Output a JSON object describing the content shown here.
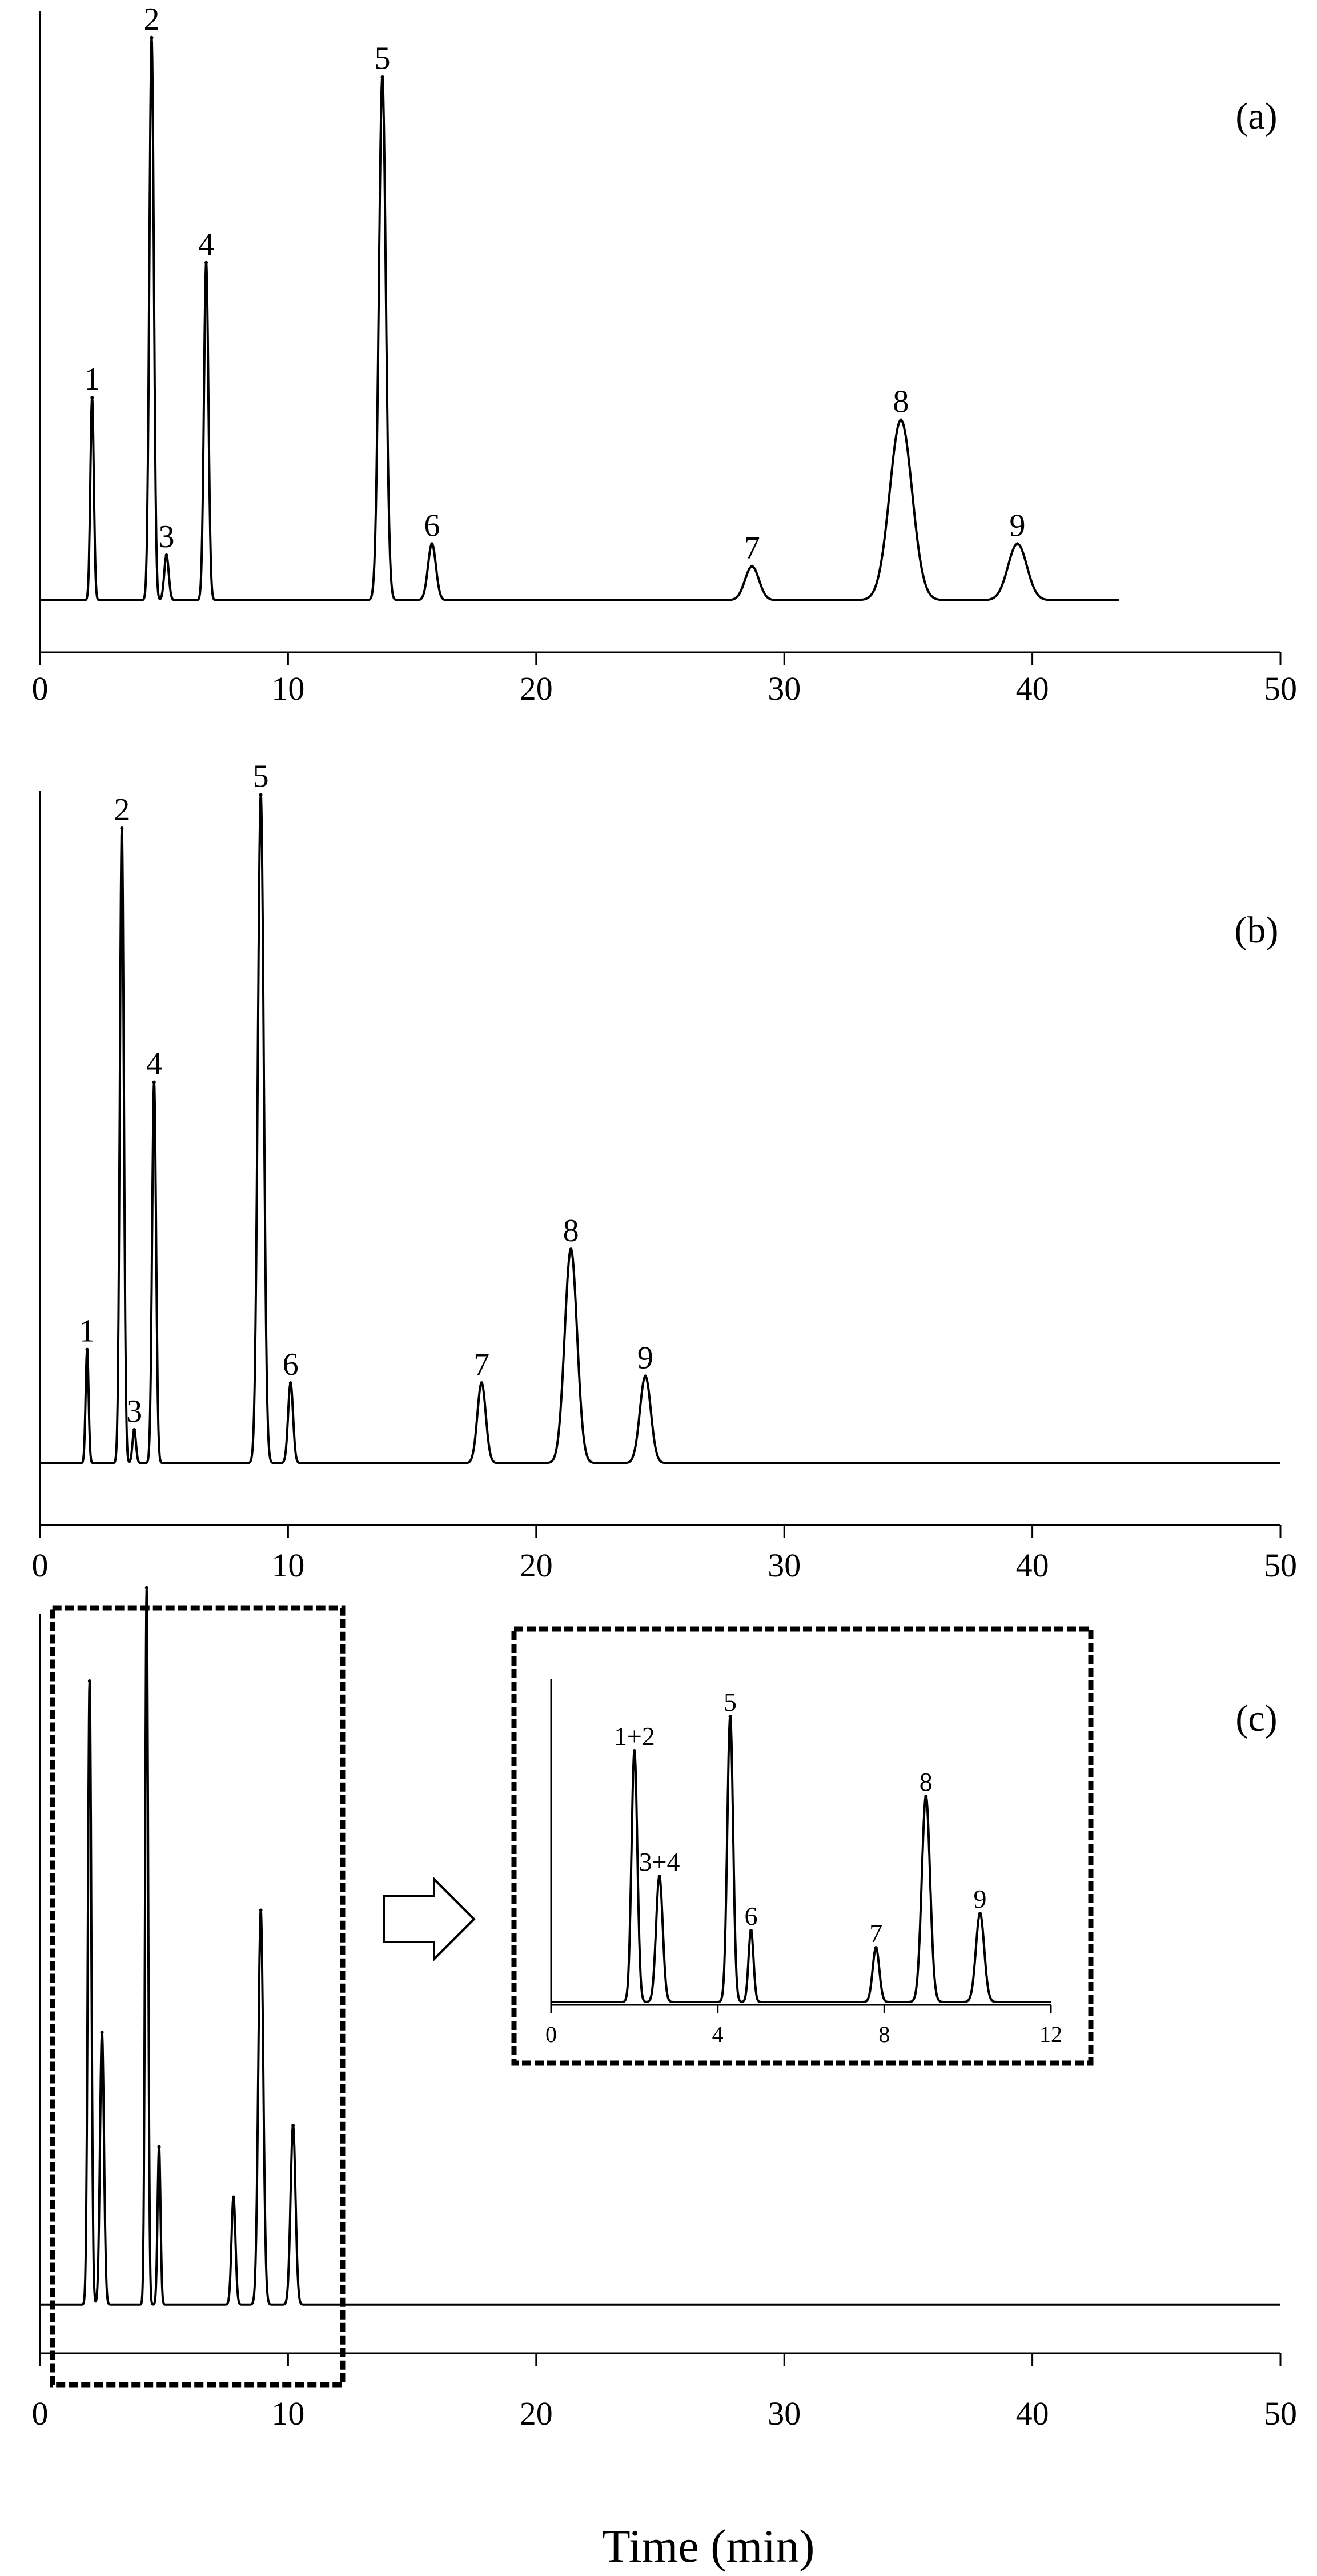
{
  "chart_data": [
    {
      "type": "line",
      "panel_label": "(a)",
      "xlim": [
        0,
        50
      ],
      "x_ticks": [
        0,
        10,
        20,
        30,
        40,
        50
      ],
      "x_tick_labels": [
        "0",
        "10",
        "20",
        "30",
        "40",
        "50"
      ],
      "y_tick_labels": [],
      "baseline": 0.05,
      "peaks": [
        {
          "label": "1",
          "x": 2.1,
          "height": 0.36,
          "width": 0.07
        },
        {
          "label": "2",
          "x": 4.5,
          "height": 1.0,
          "width": 0.09
        },
        {
          "label": "3",
          "x": 5.1,
          "height": 0.08,
          "width": 0.09
        },
        {
          "label": "4",
          "x": 6.7,
          "height": 0.6,
          "width": 0.09
        },
        {
          "label": "5",
          "x": 13.8,
          "height": 0.93,
          "width": 0.14
        },
        {
          "label": "6",
          "x": 15.8,
          "height": 0.1,
          "width": 0.16
        },
        {
          "label": "7",
          "x": 28.7,
          "height": 0.06,
          "width": 0.28
        },
        {
          "label": "8",
          "x": 34.7,
          "height": 0.32,
          "width": 0.45
        },
        {
          "label": "9",
          "x": 39.4,
          "height": 0.1,
          "width": 0.38
        }
      ],
      "line_end_x": 43.5
    },
    {
      "type": "line",
      "panel_label": "(b)",
      "xlim": [
        0,
        50
      ],
      "x_ticks": [
        0,
        10,
        20,
        30,
        40,
        50
      ],
      "x_tick_labels": [
        "0",
        "10",
        "20",
        "30",
        "40",
        "50"
      ],
      "y_tick_labels": [],
      "baseline": 0.05,
      "peaks": [
        {
          "label": "1",
          "x": 1.9,
          "height": 0.17,
          "width": 0.06
        },
        {
          "label": "2",
          "x": 3.3,
          "height": 0.95,
          "width": 0.08
        },
        {
          "label": "3",
          "x": 3.8,
          "height": 0.05,
          "width": 0.07
        },
        {
          "label": "4",
          "x": 4.6,
          "height": 0.57,
          "width": 0.08
        },
        {
          "label": "5",
          "x": 8.9,
          "height": 1.0,
          "width": 0.12
        },
        {
          "label": "6",
          "x": 10.1,
          "height": 0.12,
          "width": 0.1
        },
        {
          "label": "7",
          "x": 17.8,
          "height": 0.12,
          "width": 0.17
        },
        {
          "label": "8",
          "x": 21.4,
          "height": 0.32,
          "width": 0.25
        },
        {
          "label": "9",
          "x": 24.4,
          "height": 0.13,
          "width": 0.22
        }
      ],
      "line_end_x": 50
    },
    {
      "type": "line",
      "panel_label": "(c)",
      "xlim": [
        0,
        50
      ],
      "x_ticks": [
        0,
        10,
        20,
        30,
        40,
        50
      ],
      "x_tick_labels": [
        "0",
        "10",
        "20",
        "30",
        "40",
        "50"
      ],
      "y_tick_labels": [],
      "baseline": 0.04,
      "peaks": [
        {
          "x": 2.0,
          "height": 0.87,
          "width": 0.07
        },
        {
          "x": 2.5,
          "height": 0.38,
          "width": 0.08
        },
        {
          "x": 4.3,
          "height": 1.0,
          "width": 0.06
        },
        {
          "x": 4.8,
          "height": 0.22,
          "width": 0.06
        },
        {
          "x": 7.8,
          "height": 0.15,
          "width": 0.08
        },
        {
          "x": 8.9,
          "height": 0.55,
          "width": 0.1
        },
        {
          "x": 10.2,
          "height": 0.25,
          "width": 0.1
        }
      ],
      "line_end_x": 50,
      "zoom_box_xlim": [
        0.5,
        12.2
      ]
    },
    {
      "type": "line",
      "panel_label": "",
      "inset_of": "(c)",
      "xlim": [
        0,
        12
      ],
      "x_ticks": [
        0,
        4,
        8,
        12
      ],
      "x_tick_labels": [
        "0",
        "4",
        "8",
        "12"
      ],
      "y_tick_labels": [],
      "baseline": 0.0,
      "peaks": [
        {
          "label": "1+2",
          "x": 2.0,
          "height": 0.88,
          "width": 0.07
        },
        {
          "label": "3+4",
          "x": 2.6,
          "height": 0.44,
          "width": 0.08
        },
        {
          "label": "5",
          "x": 4.3,
          "height": 1.0,
          "width": 0.07
        },
        {
          "label": "6",
          "x": 4.8,
          "height": 0.25,
          "width": 0.06
        },
        {
          "label": "7",
          "x": 7.8,
          "height": 0.19,
          "width": 0.08
        },
        {
          "label": "8",
          "x": 9.0,
          "height": 0.72,
          "width": 0.1
        },
        {
          "label": "9",
          "x": 10.3,
          "height": 0.31,
          "width": 0.1
        }
      ],
      "line_end_x": 12
    }
  ],
  "xlabel": "Time  (min)"
}
